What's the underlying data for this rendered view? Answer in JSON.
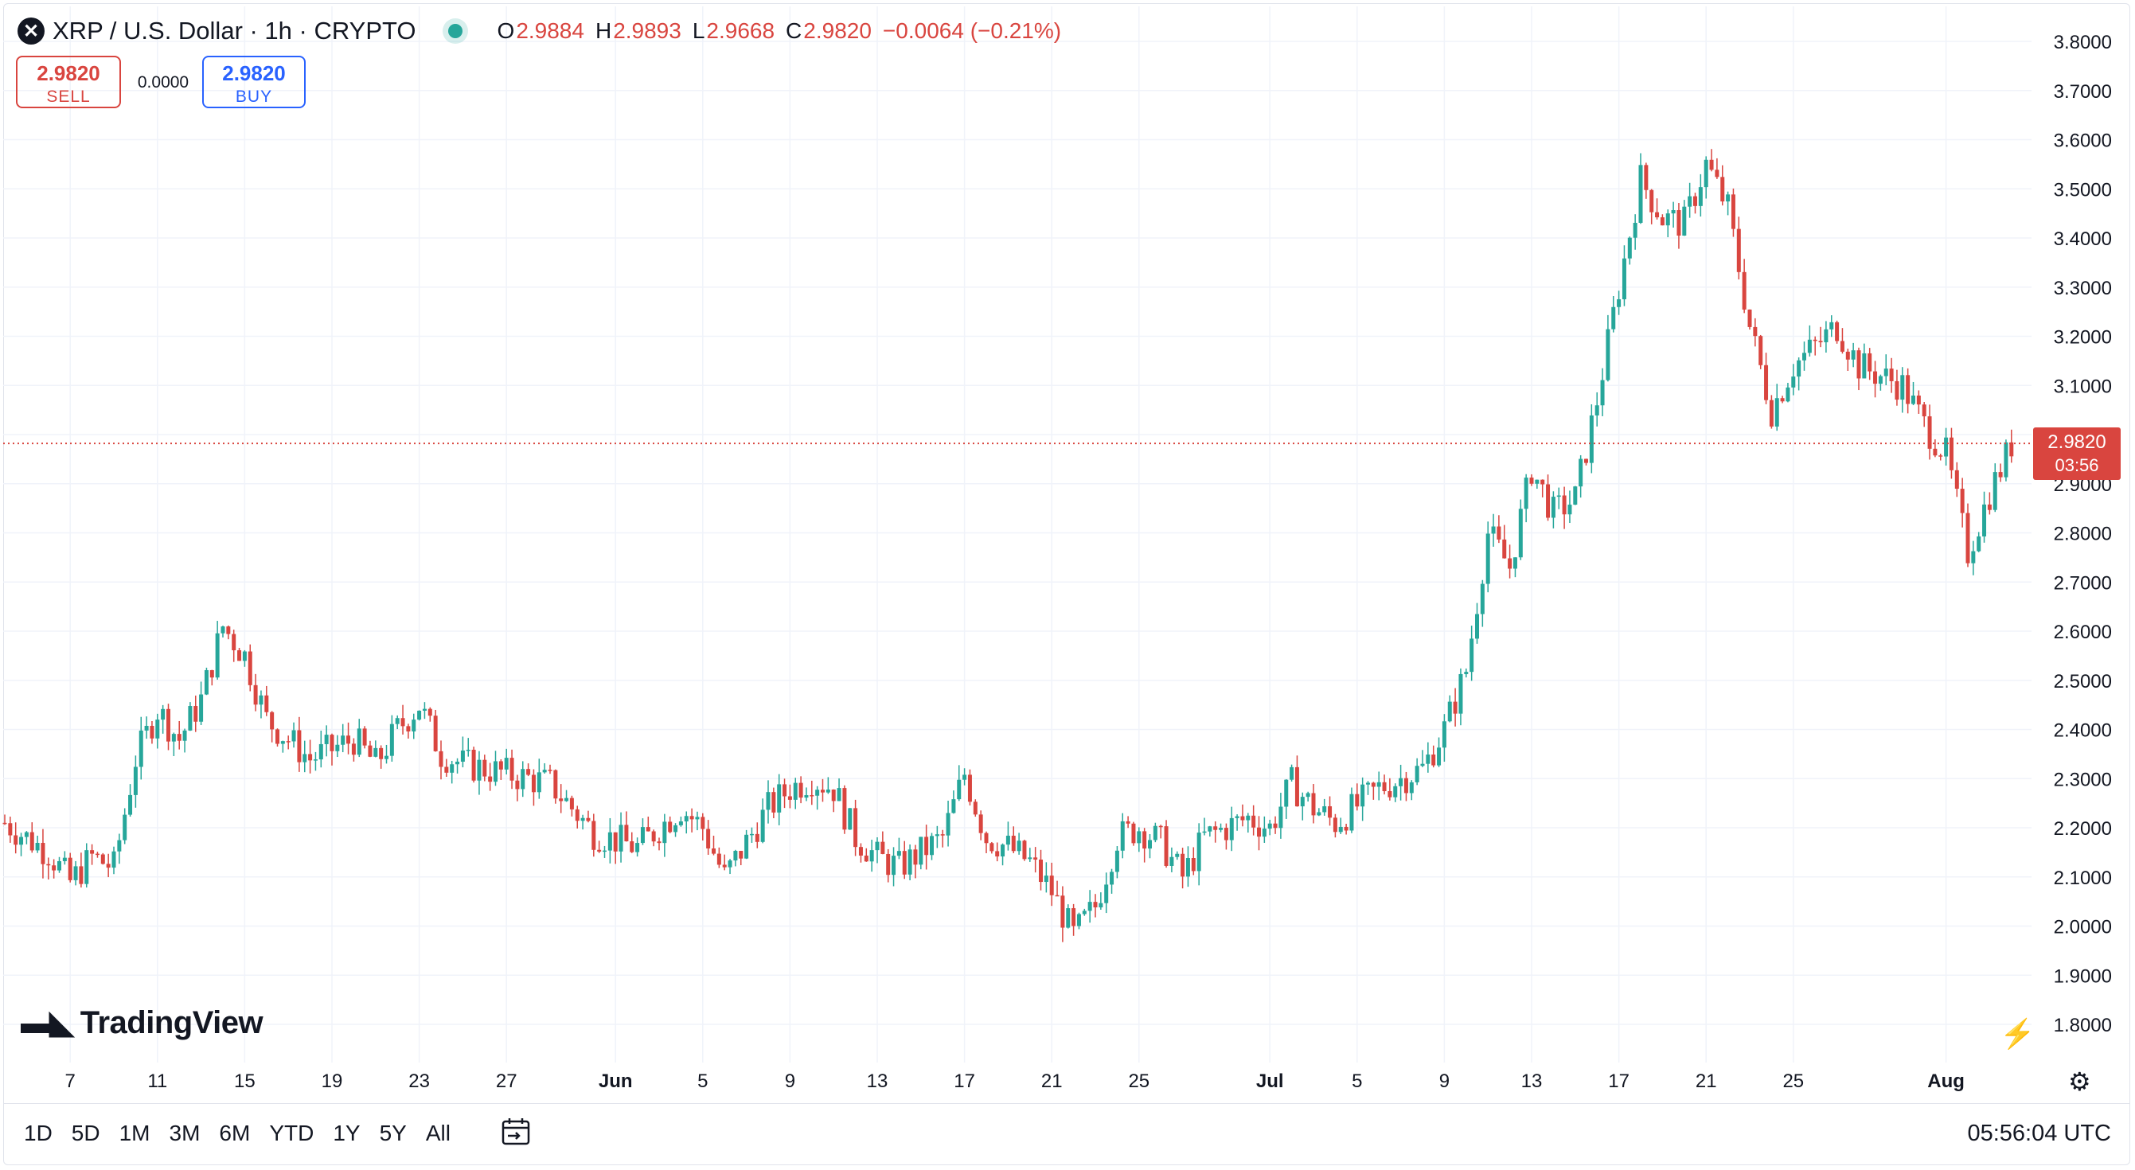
{
  "header": {
    "title": "XRP / U.S. Dollar · 1h · CRYPTO",
    "ohlc": {
      "o_label": "O",
      "o": "2.9884",
      "h_label": "H",
      "h": "2.9893",
      "l_label": "L",
      "l": "2.9668",
      "c_label": "C",
      "c": "2.9820",
      "change": "−0.0064 (−0.21%)"
    }
  },
  "trade": {
    "sell_price": "2.9820",
    "sell_label": "SELL",
    "spread": "0.0000",
    "buy_price": "2.9820",
    "buy_label": "BUY"
  },
  "current": {
    "price": "2.9820",
    "countdown": "03:56"
  },
  "brand": {
    "name": "TradingView"
  },
  "toolbar": {
    "ranges": [
      "1D",
      "5D",
      "1M",
      "3M",
      "6M",
      "YTD",
      "1Y",
      "5Y",
      "All"
    ],
    "clock": "05:56:04 UTC"
  },
  "colors": {
    "up": "#26a69a",
    "down": "#d9453f",
    "grid": "#f0f3fa",
    "accent": "#2962ff"
  },
  "icons": [
    "x-logo-icon",
    "status-dot-icon",
    "tradingview-logo-icon",
    "calendar-goto-icon",
    "settings-gear-icon",
    "lightning-icon"
  ],
  "chart_data": {
    "type": "candlestick",
    "title": "XRP / U.S. Dollar · 1h · CRYPTO",
    "ylim": [
      1.75,
      3.83
    ],
    "y_ticks": [
      "3.8000",
      "3.7000",
      "3.6000",
      "3.5000",
      "3.4000",
      "3.3000",
      "3.2000",
      "3.1000",
      "3.0000",
      "2.9000",
      "2.8000",
      "2.7000",
      "2.6000",
      "2.5000",
      "2.4000",
      "2.3000",
      "2.2000",
      "2.1000",
      "2.0000",
      "1.9000",
      "1.8000"
    ],
    "x_ticks": [
      "7",
      "11",
      "15",
      "19",
      "23",
      "27",
      "Jun",
      "5",
      "9",
      "13",
      "17",
      "21",
      "25",
      "Jul",
      "5",
      "9",
      "13",
      "17",
      "21",
      "25",
      "Aug"
    ],
    "bold_ticks": [
      "Jun",
      "Jul",
      "Aug"
    ],
    "last_price": 2.982,
    "grid": true,
    "close_path": [
      [
        "May 4",
        2.21
      ],
      [
        "May 6",
        2.15
      ],
      [
        "May 7",
        2.09
      ],
      [
        "May 8",
        2.14
      ],
      [
        "May 9",
        2.12
      ],
      [
        "May 10",
        2.34
      ],
      [
        "May 11",
        2.44
      ],
      [
        "May 12",
        2.38
      ],
      [
        "May 13",
        2.46
      ],
      [
        "May 14",
        2.61
      ],
      [
        "May 15",
        2.55
      ],
      [
        "May 16",
        2.42
      ],
      [
        "May 18",
        2.34
      ],
      [
        "May 20",
        2.38
      ],
      [
        "May 21",
        2.33
      ],
      [
        "May 22",
        2.4
      ],
      [
        "May 23",
        2.45
      ],
      [
        "May 24",
        2.35
      ],
      [
        "May 25",
        2.33
      ],
      [
        "May 27",
        2.31
      ],
      [
        "May 29",
        2.29
      ],
      [
        "May 31",
        2.19
      ],
      [
        "Jun 2",
        2.16
      ],
      [
        "Jun 4",
        2.24
      ],
      [
        "Jun 5",
        2.2
      ],
      [
        "Jun 6",
        2.1
      ],
      [
        "Jun 7",
        2.17
      ],
      [
        "Jun 8",
        2.24
      ],
      [
        "Jun 9",
        2.28
      ],
      [
        "Jun 10",
        2.3
      ],
      [
        "Jun 11",
        2.28
      ],
      [
        "Jun 12",
        2.18
      ],
      [
        "Jun 13",
        2.14
      ],
      [
        "Jun 14",
        2.12
      ],
      [
        "Jun 16",
        2.18
      ],
      [
        "Jun 17",
        2.31
      ],
      [
        "Jun 18",
        2.18
      ],
      [
        "Jun 19",
        2.16
      ],
      [
        "Jun 20",
        2.13
      ],
      [
        "Jun 21",
        2.07
      ],
      [
        "Jun 22",
        1.98
      ],
      [
        "Jun 23",
        2.04
      ],
      [
        "Jun 24",
        2.18
      ],
      [
        "Jun 25",
        2.2
      ],
      [
        "Jun 26",
        2.17
      ],
      [
        "Jun 27",
        2.1
      ],
      [
        "Jun 28",
        2.18
      ],
      [
        "Jun 30",
        2.22
      ],
      [
        "Jul 1",
        2.2
      ],
      [
        "Jul 2",
        2.29
      ],
      [
        "Jul 3",
        2.24
      ],
      [
        "Jul 4",
        2.21
      ],
      [
        "Jul 6",
        2.28
      ],
      [
        "Jul 7",
        2.3
      ],
      [
        "Jul 8",
        2.32
      ],
      [
        "Jul 9",
        2.4
      ],
      [
        "Jul 10",
        2.52
      ],
      [
        "Jul 11",
        2.8
      ],
      [
        "Jul 12",
        2.73
      ],
      [
        "Jul 13",
        2.93
      ],
      [
        "Jul 14",
        2.84
      ],
      [
        "Jul 15",
        2.87
      ],
      [
        "Jul 16",
        3.07
      ],
      [
        "Jul 17",
        3.3
      ],
      [
        "Jul 18",
        3.52
      ],
      [
        "Jul 19",
        3.44
      ],
      [
        "Jul 20",
        3.43
      ],
      [
        "Jul 21",
        3.55
      ],
      [
        "Jul 22",
        3.46
      ],
      [
        "Jul 23",
        3.22
      ],
      [
        "Jul 24",
        3.05
      ],
      [
        "Jul 25",
        3.14
      ],
      [
        "Jul 26",
        3.18
      ],
      [
        "Jul 27",
        3.22
      ],
      [
        "Jul 28",
        3.14
      ],
      [
        "Jul 29",
        3.12
      ],
      [
        "Jul 30",
        3.1
      ],
      [
        "Jul 31",
        3.02
      ],
      [
        "Aug 1",
        2.96
      ],
      [
        "Aug 2",
        2.76
      ],
      [
        "Aug 3",
        2.88
      ],
      [
        "Aug 4",
        2.98
      ]
    ]
  }
}
